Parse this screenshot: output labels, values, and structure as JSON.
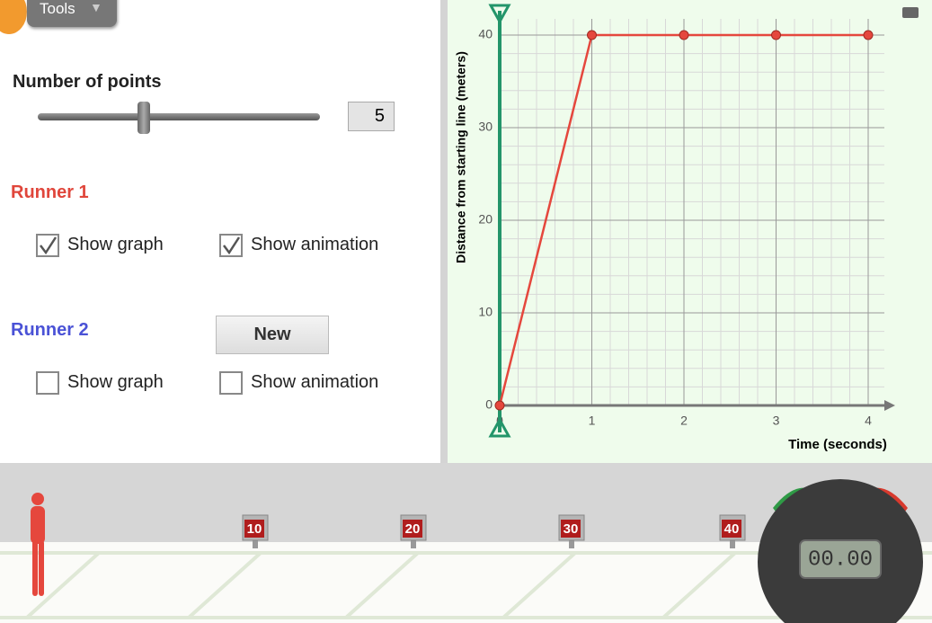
{
  "toolbar": {
    "tools": "Tools"
  },
  "controls": {
    "number_of_points": {
      "label": "Number of points",
      "value": 5
    },
    "runner_1": {
      "title": "Runner 1",
      "show_graph": {
        "label": "Show graph",
        "checked": true
      },
      "show_animation": {
        "label": "Show animation",
        "checked": true
      }
    },
    "runner_2": {
      "title": "Runner 2",
      "new_button": "New",
      "show_graph": {
        "label": "Show graph",
        "checked": false
      },
      "show_animation": {
        "label": "Show animation",
        "checked": false
      }
    }
  },
  "chart_data": {
    "type": "line",
    "x_label": "Time (seconds)",
    "y_label": "Distance from starting line (meters)",
    "x": [
      0,
      1,
      2,
      3,
      4
    ],
    "values": [
      0,
      40,
      40,
      40,
      40
    ],
    "color": "#e5473d",
    "xlim": [
      0,
      4
    ],
    "ylim": [
      0,
      40
    ],
    "xticks": [
      0,
      1,
      2,
      3,
      4
    ],
    "yticks": [
      0,
      10,
      20,
      30,
      40
    ],
    "grid": true
  },
  "track": {
    "markers": [
      10,
      20,
      30,
      40
    ],
    "stopwatch": "00.00"
  }
}
